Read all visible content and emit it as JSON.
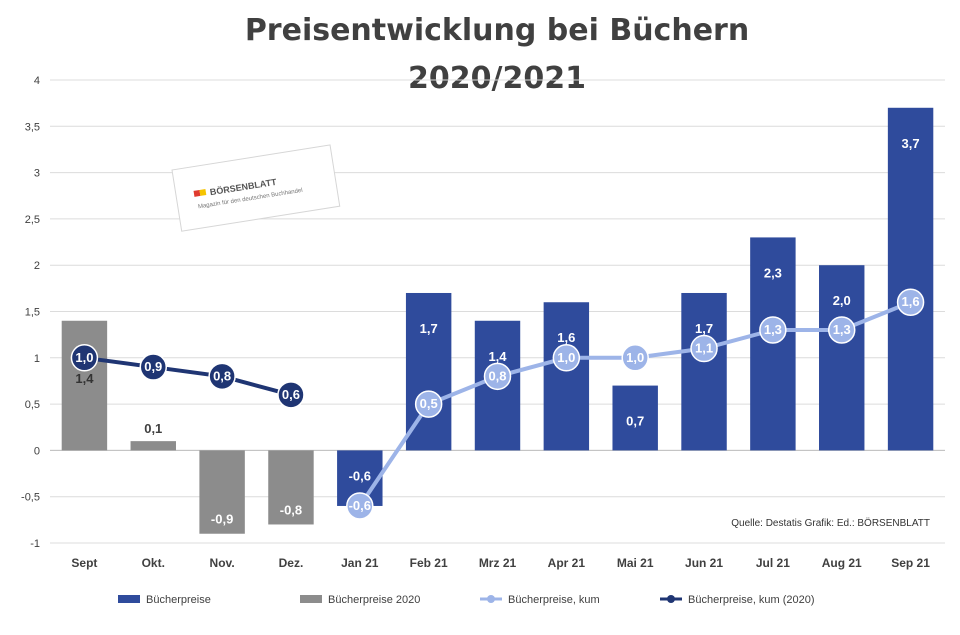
{
  "chart_data": {
    "type": "bar",
    "title_lines": [
      "Preisentwicklung bei Büchern",
      "2020/2021"
    ],
    "categories": [
      "Sept",
      "Okt.",
      "Nov.",
      "Dez.",
      "Jan 21",
      "Feb 21",
      "Mrz 21",
      "Apr 21",
      "Mai 21",
      "Jun 21",
      "Jul 21",
      "Aug 21",
      "Sep 21"
    ],
    "ylim": [
      -1,
      4
    ],
    "yticks": [
      "4",
      "3,5",
      "3",
      "2,5",
      "2",
      "1,5",
      "1",
      "0,5",
      "0",
      "-0,5",
      "-1"
    ],
    "grid": true,
    "legend_position": "bottom",
    "source": "Quelle: Destatis Grafik: Ed.: BÖRSENBLATT",
    "series": [
      {
        "name": "Bücherpreise",
        "kind": "bar",
        "color": "#2f4b9c",
        "values": [
          null,
          null,
          null,
          null,
          -0.6,
          1.7,
          1.4,
          1.6,
          0.7,
          1.7,
          2.3,
          2.0,
          3.7
        ],
        "labels": [
          "",
          "",
          "",
          "",
          "-0,6",
          "1,7",
          "1,4",
          "1,6",
          "0,7",
          "1,7",
          "2,3",
          "2,0",
          "3,7"
        ]
      },
      {
        "name": "Bücherpreise 2020",
        "kind": "bar",
        "color": "#8c8c8c",
        "values": [
          1.4,
          0.1,
          -0.9,
          -0.8,
          null,
          null,
          null,
          null,
          null,
          null,
          null,
          null,
          null
        ],
        "labels": [
          "1,4",
          "0,1",
          "-0,9",
          "-0,8",
          "",
          "",
          "",
          "",
          "",
          "",
          "",
          "",
          ""
        ]
      },
      {
        "name": "Bücherpreise, kum",
        "kind": "line",
        "color": "#9db4e8",
        "values": [
          null,
          null,
          null,
          null,
          -0.6,
          0.5,
          0.8,
          1.0,
          1.0,
          1.1,
          1.3,
          1.3,
          1.6
        ],
        "labels": [
          "",
          "",
          "",
          "",
          "-0,6",
          "0,5",
          "0,8",
          "1,0",
          "1,0",
          "1,1",
          "1,3",
          "1,3",
          "1,6"
        ]
      },
      {
        "name": "Bücherpreise, kum (2020)",
        "kind": "line",
        "color": "#1f3573",
        "values": [
          1.0,
          0.9,
          0.8,
          0.6,
          null,
          null,
          null,
          null,
          null,
          null,
          null,
          null,
          null
        ],
        "labels": [
          "1,0",
          "0,9",
          "0,8",
          "0,6",
          "",
          "",
          "",
          "",
          "",
          "",
          "",
          "",
          ""
        ]
      }
    ]
  },
  "logo": {
    "text": "BÖRSENBLATT",
    "sub": "Magazin für den deutschen Buchhandel"
  }
}
